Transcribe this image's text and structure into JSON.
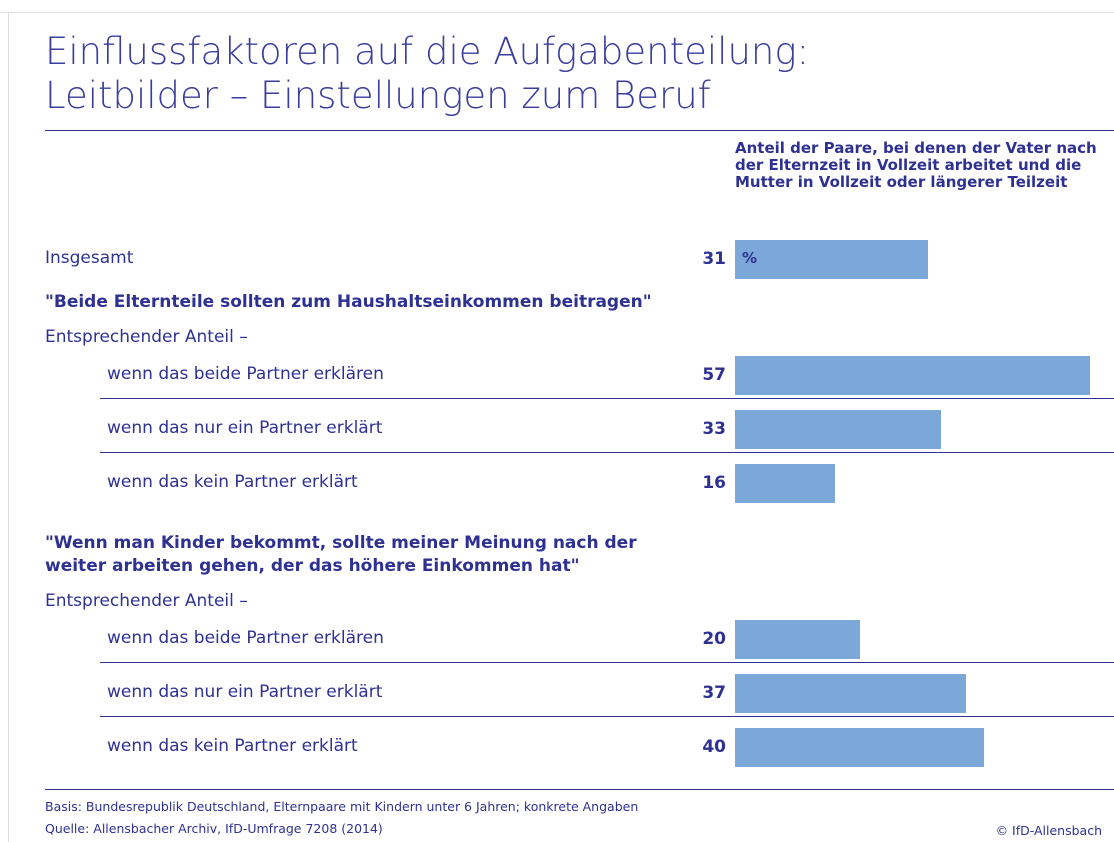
{
  "chart_data": {
    "type": "bar",
    "title": [
      "Einflussfaktoren auf die Aufgabenteilung:",
      "Leitbilder – Einstellungen zum Beruf"
    ],
    "value_header": "Anteil der Paare, bei denen der Vater nach der Elternzeit in Vollzeit arbeitet und die Mutter in Vollzeit oder längerer Teilzeit",
    "unit": "%",
    "color": "#7ba7d9",
    "total": {
      "category": "Insgesamt",
      "value": 31
    },
    "groups": [
      {
        "heading": [
          "\"Beide Elternteile sollten zum Haushaltseinkommen beitragen\""
        ],
        "subheading": "Entsprechender Anteil –",
        "categories": [
          "wenn das beide Partner erklären",
          "wenn das nur ein Partner erklärt",
          "wenn das kein Partner erklärt"
        ],
        "values": [
          57,
          33,
          16
        ]
      },
      {
        "heading": [
          "\"Wenn man Kinder bekommt, sollte meiner Meinung nach der",
          "weiter arbeiten gehen, der das höhere Einkommen hat\""
        ],
        "subheading": "Entsprechender Anteil –",
        "categories": [
          "wenn das beide Partner erklären",
          "wenn das nur ein Partner erklärt",
          "wenn das kein Partner erklärt"
        ],
        "values": [
          20,
          37,
          40
        ]
      }
    ],
    "notes": [
      "Basis: Bundesrepublik Deutschland, Elternpaare mit Kindern unter 6 Jahren; konkrete Angaben",
      "Quelle: Allensbacher Archiv, IfD-Umfrage 7208 (2014)"
    ],
    "copyright": "© IfD-Allensbach"
  }
}
